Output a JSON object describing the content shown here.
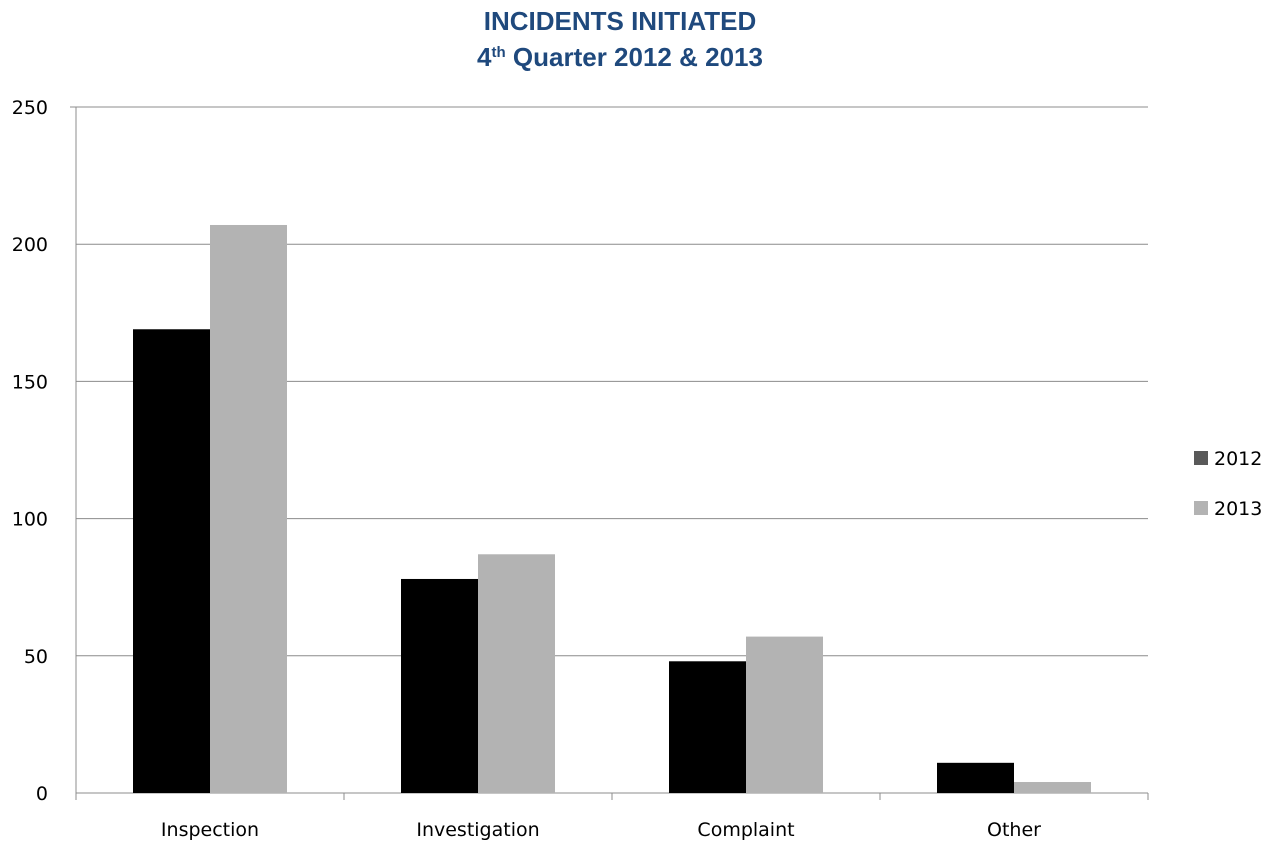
{
  "chart_data": {
    "type": "bar",
    "title_main": "INCIDENTS INITIATED",
    "title_sub_prefix": "4",
    "title_sub_sup": "th",
    "title_sub_suffix": " Quarter 2012 & 2013",
    "categories": [
      "Inspection",
      "Investigation",
      "Complaint",
      "Other"
    ],
    "series": [
      {
        "name": "2012",
        "values": [
          169,
          78,
          48,
          11
        ],
        "color": "#000000"
      },
      {
        "name": "2013",
        "values": [
          207,
          87,
          57,
          4
        ],
        "color": "#b3b3b3"
      }
    ],
    "legend_colors": [
      "#595959",
      "#b3b3b3"
    ],
    "ylim": [
      0,
      250
    ],
    "yticks": [
      0,
      50,
      100,
      150,
      200,
      250
    ],
    "grid": true,
    "legend_position": "right"
  }
}
